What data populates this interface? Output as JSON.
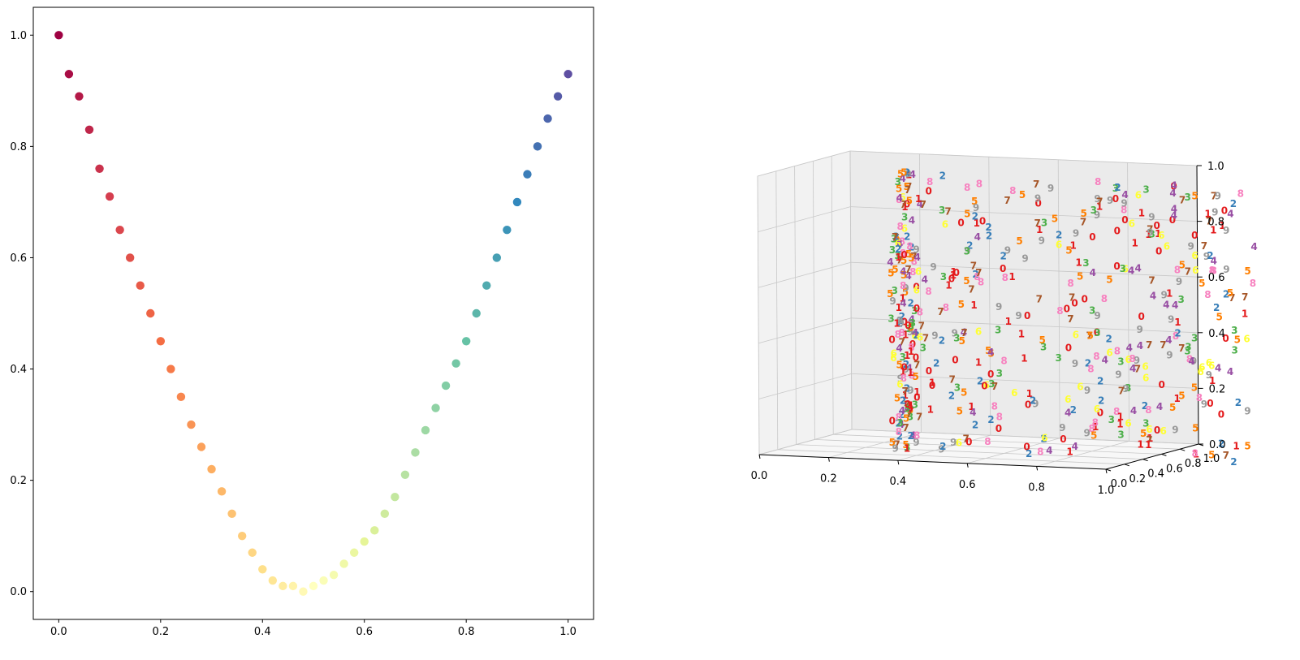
{
  "chart_data": [
    {
      "type": "scatter",
      "title": "",
      "xlabel": "",
      "ylabel": "",
      "xlim": [
        -0.05,
        1.05
      ],
      "ylim": [
        -0.05,
        1.05
      ],
      "grid": false,
      "colormap": "Spectral",
      "x_ticks": [
        "0.0",
        "0.2",
        "0.4",
        "0.6",
        "0.8",
        "1.0"
      ],
      "y_ticks": [
        "0.0",
        "0.2",
        "0.4",
        "0.6",
        "0.8",
        "1.0"
      ],
      "series": [
        {
          "x": [
            0.0,
            0.02,
            0.04,
            0.06,
            0.08,
            0.1,
            0.12,
            0.14,
            0.16,
            0.18,
            0.2,
            0.22,
            0.24,
            0.26,
            0.28,
            0.3,
            0.32,
            0.34,
            0.36,
            0.38,
            0.4,
            0.42,
            0.44,
            0.46,
            0.48,
            0.5,
            0.52,
            0.54,
            0.56,
            0.58,
            0.6,
            0.62,
            0.64,
            0.66,
            0.68,
            0.7,
            0.72,
            0.74,
            0.76,
            0.78,
            0.8,
            0.82,
            0.84,
            0.86,
            0.88,
            0.9,
            0.92,
            0.94,
            0.96,
            0.98,
            1.0
          ],
          "y": [
            1.0,
            0.93,
            0.89,
            0.83,
            0.76,
            0.71,
            0.65,
            0.6,
            0.55,
            0.5,
            0.45,
            0.4,
            0.35,
            0.3,
            0.26,
            0.22,
            0.18,
            0.14,
            0.1,
            0.07,
            0.04,
            0.02,
            0.01,
            0.01,
            0.0,
            0.01,
            0.02,
            0.03,
            0.05,
            0.07,
            0.09,
            0.11,
            0.14,
            0.17,
            0.21,
            0.25,
            0.29,
            0.33,
            0.37,
            0.41,
            0.45,
            0.5,
            0.55,
            0.6,
            0.65,
            0.7,
            0.75,
            0.8,
            0.85,
            0.89,
            0.93
          ]
        }
      ]
    },
    {
      "type": "scatter",
      "title": "",
      "projection": "3d",
      "xlim": [
        0,
        1
      ],
      "ylim": [
        0,
        1
      ],
      "zlim": [
        0,
        1
      ],
      "x_ticks": [
        "0.0",
        "0.2",
        "0.4",
        "0.6",
        "0.8",
        "1.0"
      ],
      "y_ticks": [
        "0.0",
        "0.2",
        "0.4",
        "0.6",
        "0.8",
        "1.0"
      ],
      "z_ticks": [
        "0.0",
        "0.2",
        "0.4",
        "0.6",
        "0.8",
        "1.0"
      ],
      "grid": true,
      "marker": "digit labels 0-9",
      "digit_colors": [
        "#e41a1c",
        "#e41a1c",
        "#377eb8",
        "#4daf4a",
        "#984ea3",
        "#ff7f00",
        "#ffff33",
        "#a65628",
        "#f781bf",
        "#999999"
      ]
    }
  ]
}
